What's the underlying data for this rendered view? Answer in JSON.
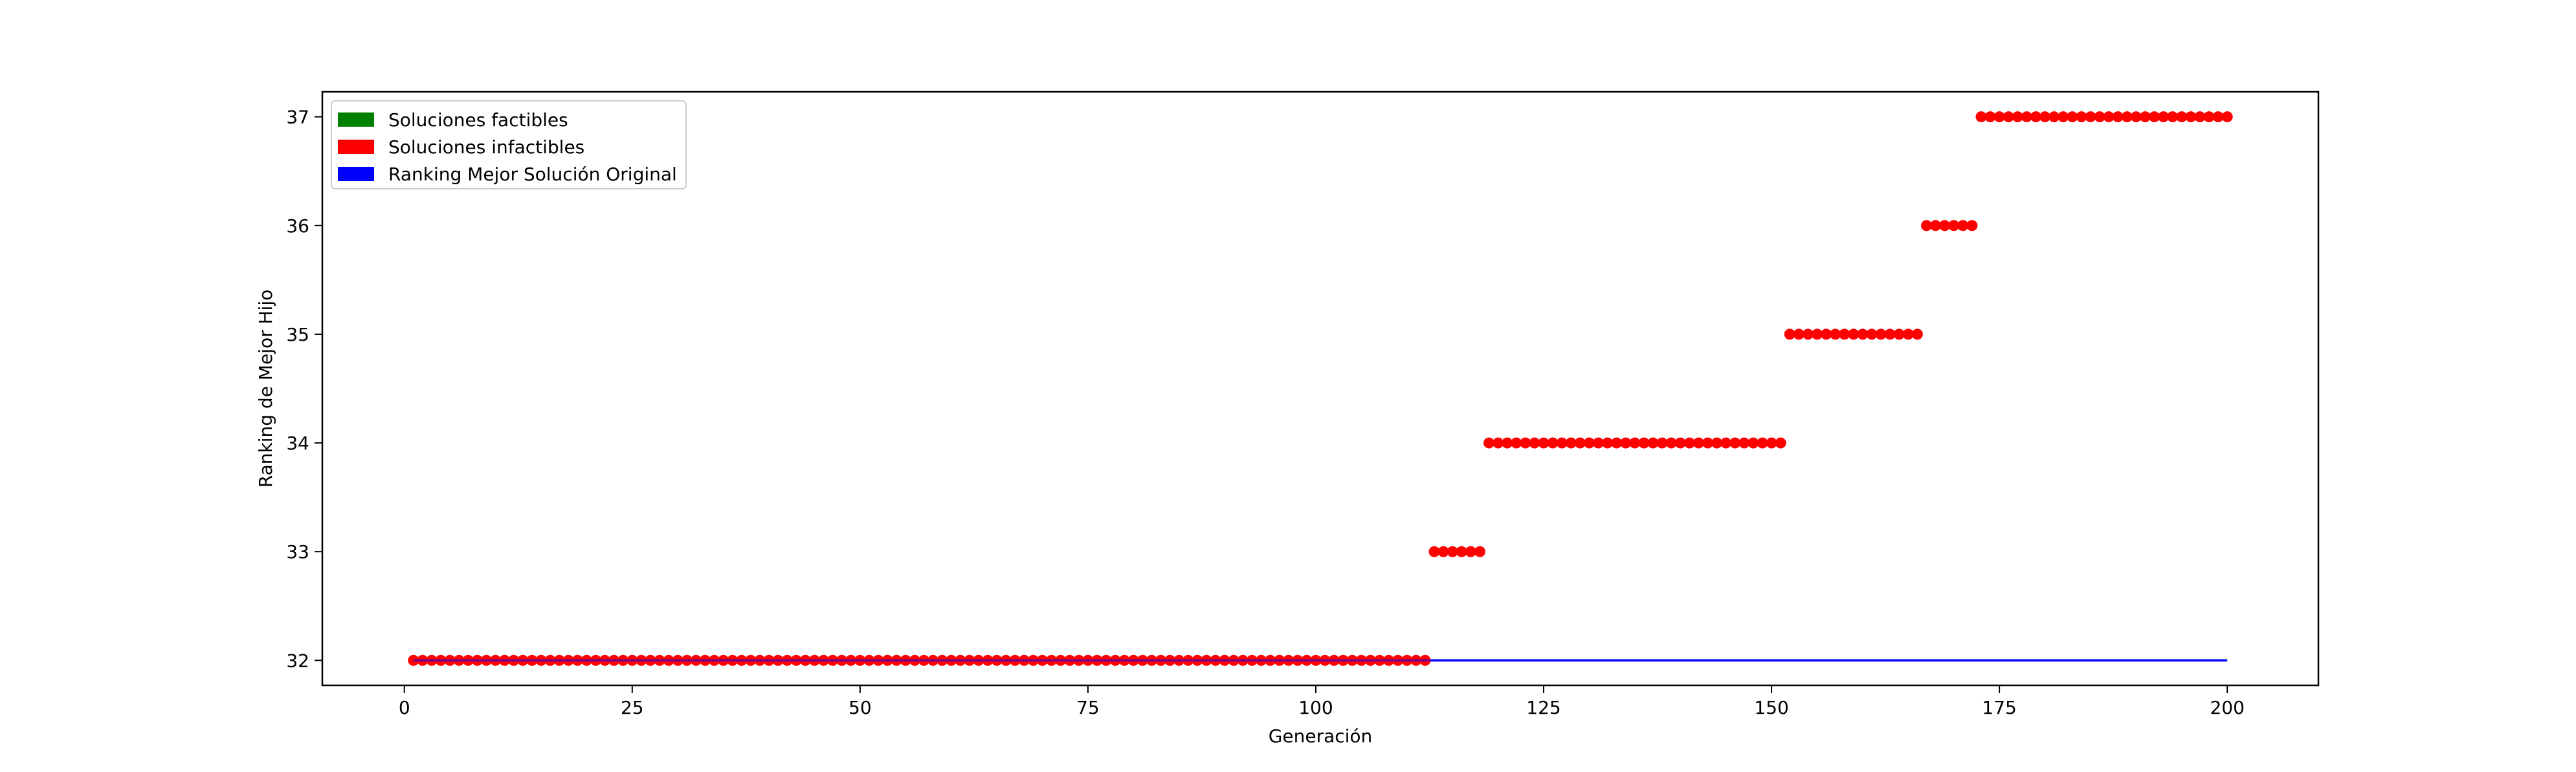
{
  "chart_data": {
    "type": "scatter",
    "xlabel": "Generación",
    "ylabel": "Ranking de Mejor Hijo",
    "xlim": [
      -9,
      210
    ],
    "ylim": [
      31.77,
      37.23
    ],
    "x_ticks": [
      0,
      25,
      50,
      75,
      100,
      125,
      150,
      175,
      200
    ],
    "y_ticks": [
      32,
      33,
      34,
      35,
      36,
      37
    ],
    "grid": false,
    "legend_position": "top-left",
    "legend": [
      {
        "label": "Soluciones factibles",
        "color": "#008000"
      },
      {
        "label": "Soluciones infactibles",
        "color": "#ff0000"
      },
      {
        "label": "Ranking Mejor Solución Original",
        "color": "#0000ff"
      }
    ],
    "series": [
      {
        "name": "Soluciones infactibles",
        "color": "#ff0000",
        "kind": "scatter",
        "segments": [
          {
            "x_from": 1,
            "x_to": 112,
            "y": 32
          },
          {
            "x_from": 113,
            "x_to": 118,
            "y": 33
          },
          {
            "x_from": 119,
            "x_to": 151,
            "y": 34
          },
          {
            "x_from": 152,
            "x_to": 166,
            "y": 35
          },
          {
            "x_from": 167,
            "x_to": 172,
            "y": 36
          },
          {
            "x_from": 173,
            "x_to": 200,
            "y": 37
          }
        ]
      },
      {
        "name": "Ranking Mejor Solución Original",
        "color": "#0000ff",
        "kind": "line",
        "x": [
          1,
          200
        ],
        "y": [
          32,
          32
        ]
      }
    ]
  }
}
